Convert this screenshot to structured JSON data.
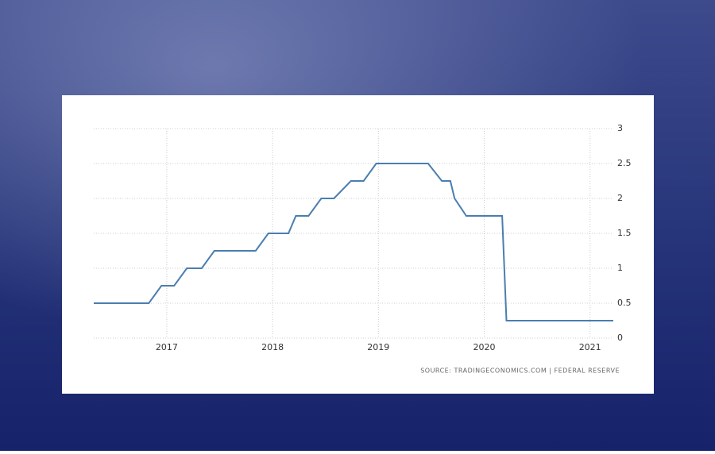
{
  "chart_data": {
    "type": "line",
    "source": "SOURCE: TRADINGECONOMICS.COM | FEDERAL RESERVE",
    "x": [
      2016.31,
      2016.83,
      2016.95,
      2017.07,
      2017.19,
      2017.33,
      2017.45,
      2017.84,
      2017.96,
      2018.15,
      2018.22,
      2018.34,
      2018.46,
      2018.58,
      2018.74,
      2018.86,
      2018.98,
      2019.47,
      2019.6,
      2019.68,
      2019.72,
      2019.83,
      2020.17,
      2020.21,
      2021.22
    ],
    "values": [
      0.5,
      0.5,
      0.75,
      0.75,
      1.0,
      1.0,
      1.25,
      1.25,
      1.5,
      1.5,
      1.75,
      1.75,
      2.0,
      2.0,
      2.25,
      2.25,
      2.5,
      2.5,
      2.25,
      2.25,
      2.0,
      1.75,
      1.75,
      0.25,
      0.25
    ],
    "color": "#4a7eb0",
    "xlim": [
      2016.31,
      2021.22
    ],
    "xticks": [
      2017,
      2018,
      2019,
      2020,
      2021
    ],
    "ylim": [
      0,
      3
    ],
    "yticks": [
      0,
      0.5,
      1,
      1.5,
      2,
      2.5,
      3
    ],
    "grid": true
  }
}
